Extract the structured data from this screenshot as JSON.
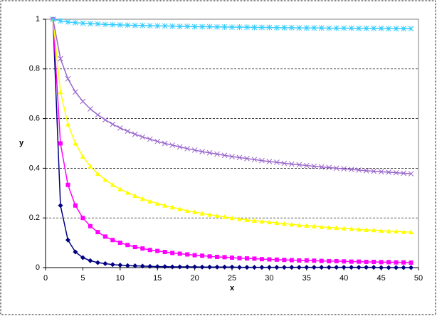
{
  "chart_data": {
    "type": "line",
    "xlabel": "x",
    "ylabel": "y",
    "x": [
      1,
      2,
      3,
      4,
      5,
      6,
      7,
      8,
      9,
      10,
      11,
      12,
      13,
      14,
      15,
      16,
      17,
      18,
      19,
      20,
      21,
      22,
      23,
      24,
      25,
      26,
      27,
      28,
      29,
      30,
      31,
      32,
      33,
      34,
      35,
      36,
      37,
      38,
      39,
      40,
      41,
      42,
      43,
      44,
      45,
      46,
      47,
      48,
      49
    ],
    "xlim": [
      0,
      50
    ],
    "xticks": [
      0,
      5,
      10,
      15,
      20,
      25,
      30,
      35,
      40,
      45,
      50
    ],
    "ylim": [
      0,
      1
    ],
    "yticks": [
      0,
      0.2,
      0.4,
      0.6,
      0.8,
      1
    ],
    "grid": true,
    "series": [
      {
        "color": "#000080",
        "marker": "diamond",
        "values": [
          1,
          0.25,
          0.111,
          0.063,
          0.04,
          0.028,
          0.02,
          0.016,
          0.012,
          0.01,
          0.008,
          0.007,
          0.006,
          0.005,
          0.004,
          0.004,
          0.003,
          0.003,
          0.003,
          0.003,
          0.002,
          0.002,
          0.002,
          0.002,
          0.002,
          0.001,
          0.001,
          0.001,
          0.001,
          0.001,
          0.001,
          0.001,
          0.001,
          0.001,
          0.001,
          0.001,
          0.001,
          0.001,
          0.001,
          0.001,
          0.001,
          0.001,
          0.001,
          0.001,
          0,
          0,
          0,
          0,
          0
        ]
      },
      {
        "color": "#ff00ff",
        "marker": "square",
        "values": [
          1,
          0.5,
          0.333,
          0.25,
          0.2,
          0.167,
          0.143,
          0.125,
          0.111,
          0.1,
          0.091,
          0.083,
          0.077,
          0.071,
          0.067,
          0.063,
          0.059,
          0.056,
          0.053,
          0.05,
          0.048,
          0.045,
          0.043,
          0.042,
          0.04,
          0.038,
          0.037,
          0.036,
          0.034,
          0.033,
          0.032,
          0.031,
          0.03,
          0.029,
          0.029,
          0.028,
          0.027,
          0.026,
          0.026,
          0.025,
          0.024,
          0.024,
          0.023,
          0.023,
          0.022,
          0.022,
          0.021,
          0.021,
          0.02
        ]
      },
      {
        "color": "#ffff00",
        "marker": "triangle",
        "values": [
          1,
          0.707,
          0.577,
          0.5,
          0.447,
          0.408,
          0.378,
          0.354,
          0.333,
          0.316,
          0.302,
          0.289,
          0.277,
          0.267,
          0.258,
          0.25,
          0.243,
          0.236,
          0.229,
          0.224,
          0.218,
          0.213,
          0.209,
          0.204,
          0.2,
          0.196,
          0.192,
          0.189,
          0.186,
          0.183,
          0.18,
          0.177,
          0.174,
          0.171,
          0.169,
          0.167,
          0.164,
          0.162,
          0.16,
          0.158,
          0.156,
          0.154,
          0.152,
          0.151,
          0.149,
          0.147,
          0.146,
          0.144,
          0.143
        ]
      },
      {
        "color": "#9966cc",
        "marker": "cross",
        "values": [
          1,
          0.841,
          0.76,
          0.707,
          0.669,
          0.639,
          0.615,
          0.595,
          0.577,
          0.562,
          0.549,
          0.537,
          0.526,
          0.517,
          0.508,
          0.5,
          0.493,
          0.486,
          0.479,
          0.473,
          0.467,
          0.462,
          0.457,
          0.452,
          0.447,
          0.443,
          0.439,
          0.435,
          0.431,
          0.427,
          0.424,
          0.42,
          0.417,
          0.414,
          0.411,
          0.408,
          0.405,
          0.403,
          0.4,
          0.398,
          0.395,
          0.393,
          0.39,
          0.388,
          0.386,
          0.384,
          0.382,
          0.38,
          0.378
        ]
      },
      {
        "color": "#33ccff",
        "marker": "star",
        "values": [
          1,
          0.993,
          0.989,
          0.986,
          0.984,
          0.982,
          0.981,
          0.979,
          0.978,
          0.977,
          0.976,
          0.975,
          0.975,
          0.974,
          0.973,
          0.973,
          0.972,
          0.971,
          0.971,
          0.97,
          0.97,
          0.97,
          0.969,
          0.969,
          0.968,
          0.968,
          0.968,
          0.967,
          0.967,
          0.967,
          0.966,
          0.966,
          0.966,
          0.965,
          0.965,
          0.965,
          0.965,
          0.964,
          0.964,
          0.964,
          0.964,
          0.963,
          0.963,
          0.963,
          0.963,
          0.962,
          0.962,
          0.962,
          0.962
        ]
      }
    ]
  }
}
